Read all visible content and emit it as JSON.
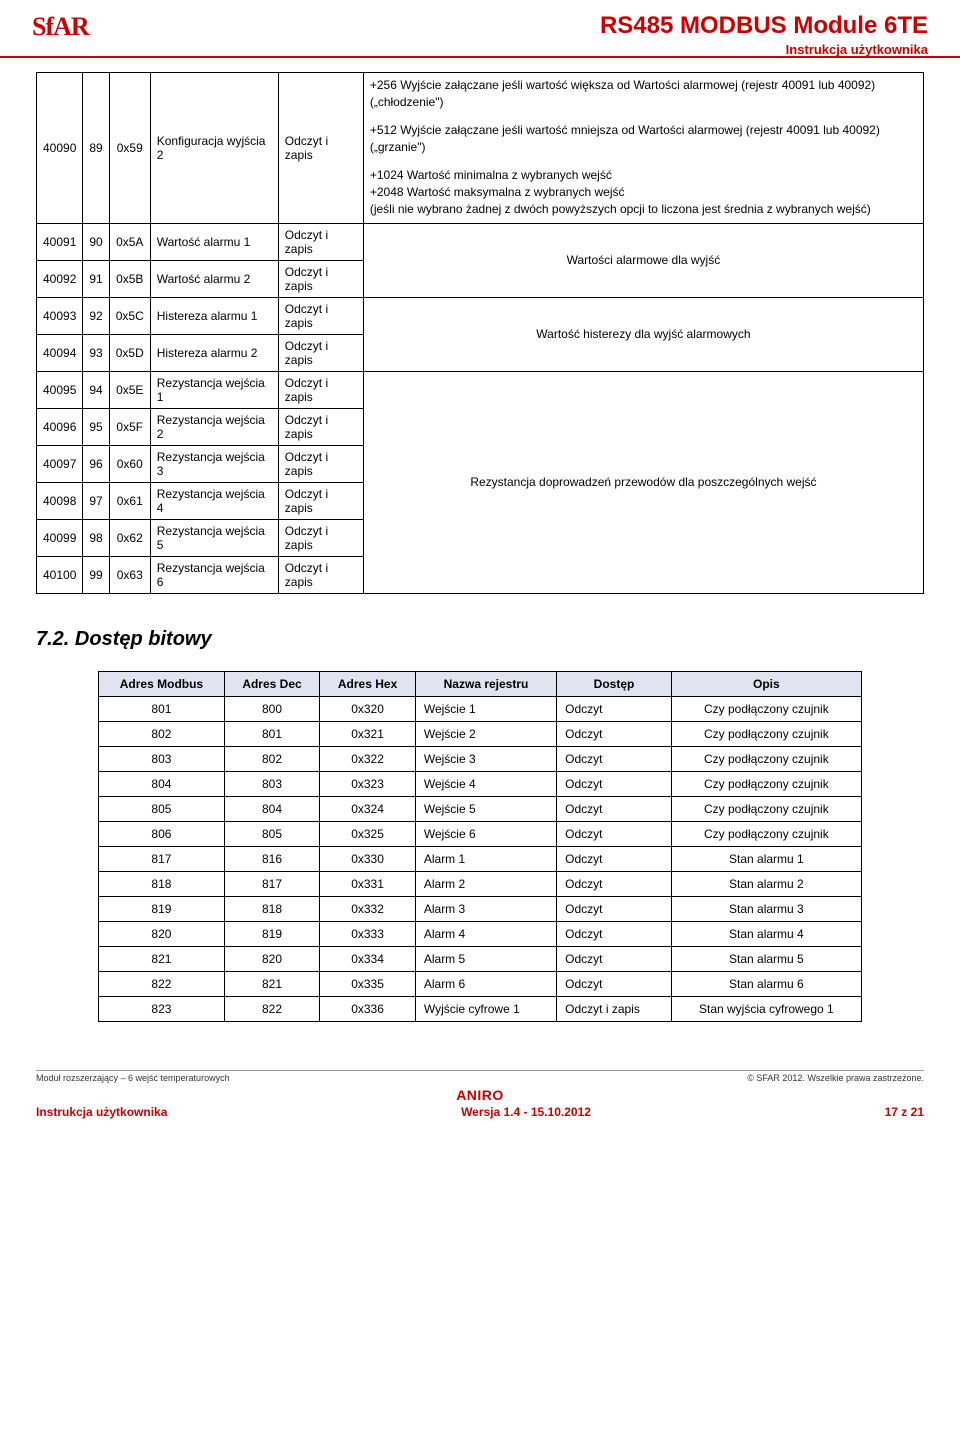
{
  "header": {
    "logo": "SfAR",
    "title": "RS485 MODBUS Module 6TE",
    "subtitle": "Instrukcja użytkownika"
  },
  "table1": {
    "largeRow": {
      "c0": "40090",
      "c1": "89",
      "c2": "0x59",
      "c3": "Konfiguracja wyjścia 2",
      "c4": "Odczyt i zapis",
      "desc1": "+256 Wyjście załączane jeśli wartość większa od Wartości alarmowej (rejestr 40091 lub 40092) („chłodzenie\")",
      "desc2": "+512 Wyjście załączane jeśli wartość mniejsza od Wartości alarmowej (rejestr 40091 lub 40092) („grzanie\")",
      "desc3": "+1024 Wartość minimalna z wybranych wejść",
      "desc4": "+2048 Wartość maksymalna z wybranych wejść",
      "desc5": "(jeśli nie wybrano żadnej z dwóch powyższych opcji to liczona jest średnia z wybranych wejść)"
    },
    "groupA": {
      "rows": [
        {
          "c0": "40091",
          "c1": "90",
          "c2": "0x5A",
          "c3": "Wartość alarmu 1",
          "c4": "Odczyt i zapis"
        },
        {
          "c0": "40092",
          "c1": "91",
          "c2": "0x5B",
          "c3": "Wartość alarmu 2",
          "c4": "Odczyt i zapis"
        }
      ],
      "desc": "Wartości alarmowe dla wyjść"
    },
    "groupB": {
      "rows": [
        {
          "c0": "40093",
          "c1": "92",
          "c2": "0x5C",
          "c3": "Histereza alarmu 1",
          "c4": "Odczyt i zapis"
        },
        {
          "c0": "40094",
          "c1": "93",
          "c2": "0x5D",
          "c3": "Histereza alarmu 2",
          "c4": "Odczyt i zapis"
        }
      ],
      "desc": "Wartość histerezy dla wyjść alarmowych"
    },
    "groupC": {
      "rows": [
        {
          "c0": "40095",
          "c1": "94",
          "c2": "0x5E",
          "c3": "Rezystancja wejścia 1",
          "c4": "Odczyt i zapis"
        },
        {
          "c0": "40096",
          "c1": "95",
          "c2": "0x5F",
          "c3": "Rezystancja wejścia 2",
          "c4": "Odczyt i zapis"
        },
        {
          "c0": "40097",
          "c1": "96",
          "c2": "0x60",
          "c3": "Rezystancja wejścia 3",
          "c4": "Odczyt i zapis"
        },
        {
          "c0": "40098",
          "c1": "97",
          "c2": "0x61",
          "c3": "Rezystancja wejścia 4",
          "c4": "Odczyt i zapis"
        },
        {
          "c0": "40099",
          "c1": "98",
          "c2": "0x62",
          "c3": "Rezystancja wejścia 5",
          "c4": "Odczyt i zapis"
        },
        {
          "c0": "40100",
          "c1": "99",
          "c2": "0x63",
          "c3": "Rezystancja wejścia 6",
          "c4": "Odczyt i zapis"
        }
      ],
      "desc": "Rezystancja doprowadzeń przewodów dla poszczególnych wejść"
    }
  },
  "section2_title": "7.2. Dostęp bitowy",
  "table2": {
    "headers": [
      "Adres Modbus",
      "Adres Dec",
      "Adres Hex",
      "Nazwa rejestru",
      "Dostęp",
      "Opis"
    ],
    "rows": [
      {
        "c0": "801",
        "c1": "800",
        "c2": "0x320",
        "c3": "Wejście 1",
        "c4": "Odczyt",
        "c5": "Czy podłączony czujnik"
      },
      {
        "c0": "802",
        "c1": "801",
        "c2": "0x321",
        "c3": "Wejście 2",
        "c4": "Odczyt",
        "c5": "Czy podłączony czujnik"
      },
      {
        "c0": "803",
        "c1": "802",
        "c2": "0x322",
        "c3": "Wejście 3",
        "c4": "Odczyt",
        "c5": "Czy podłączony czujnik"
      },
      {
        "c0": "804",
        "c1": "803",
        "c2": "0x323",
        "c3": "Wejście 4",
        "c4": "Odczyt",
        "c5": "Czy podłączony czujnik"
      },
      {
        "c0": "805",
        "c1": "804",
        "c2": "0x324",
        "c3": "Wejście 5",
        "c4": "Odczyt",
        "c5": "Czy podłączony czujnik"
      },
      {
        "c0": "806",
        "c1": "805",
        "c2": "0x325",
        "c3": "Wejście 6",
        "c4": "Odczyt",
        "c5": "Czy podłączony czujnik"
      },
      {
        "c0": "817",
        "c1": "816",
        "c2": "0x330",
        "c3": "Alarm 1",
        "c4": "Odczyt",
        "c5": "Stan alarmu 1"
      },
      {
        "c0": "818",
        "c1": "817",
        "c2": "0x331",
        "c3": "Alarm 2",
        "c4": "Odczyt",
        "c5": "Stan alarmu 2"
      },
      {
        "c0": "819",
        "c1": "818",
        "c2": "0x332",
        "c3": "Alarm 3",
        "c4": "Odczyt",
        "c5": "Stan alarmu 3"
      },
      {
        "c0": "820",
        "c1": "819",
        "c2": "0x333",
        "c3": "Alarm 4",
        "c4": "Odczyt",
        "c5": "Stan alarmu 4"
      },
      {
        "c0": "821",
        "c1": "820",
        "c2": "0x334",
        "c3": "Alarm 5",
        "c4": "Odczyt",
        "c5": "Stan alarmu 5"
      },
      {
        "c0": "822",
        "c1": "821",
        "c2": "0x335",
        "c3": "Alarm 6",
        "c4": "Odczyt",
        "c5": "Stan alarmu 6"
      },
      {
        "c0": "823",
        "c1": "822",
        "c2": "0x336",
        "c3": "Wyjście cyfrowe 1",
        "c4": "Odczyt i zapis",
        "c5": "Stan wyjścia cyfrowego 1"
      }
    ]
  },
  "footer": {
    "line1_left": "Moduł rozszerzający – 6 wejść temperaturowych",
    "line1_right": "© SFAR 2012. Wszelkie prawa zastrzeżone.",
    "brand": "ANIRO",
    "line2_left": "Instrukcja użytkownika",
    "line2_center": "Wersja 1.4 - 15.10.2012",
    "line2_right": "17 z 21"
  },
  "style": {
    "accent": "#c00",
    "table_header_bg": "#e2e2f0",
    "border": "#000000",
    "body_font_size": 13,
    "table_font_size": 12
  }
}
